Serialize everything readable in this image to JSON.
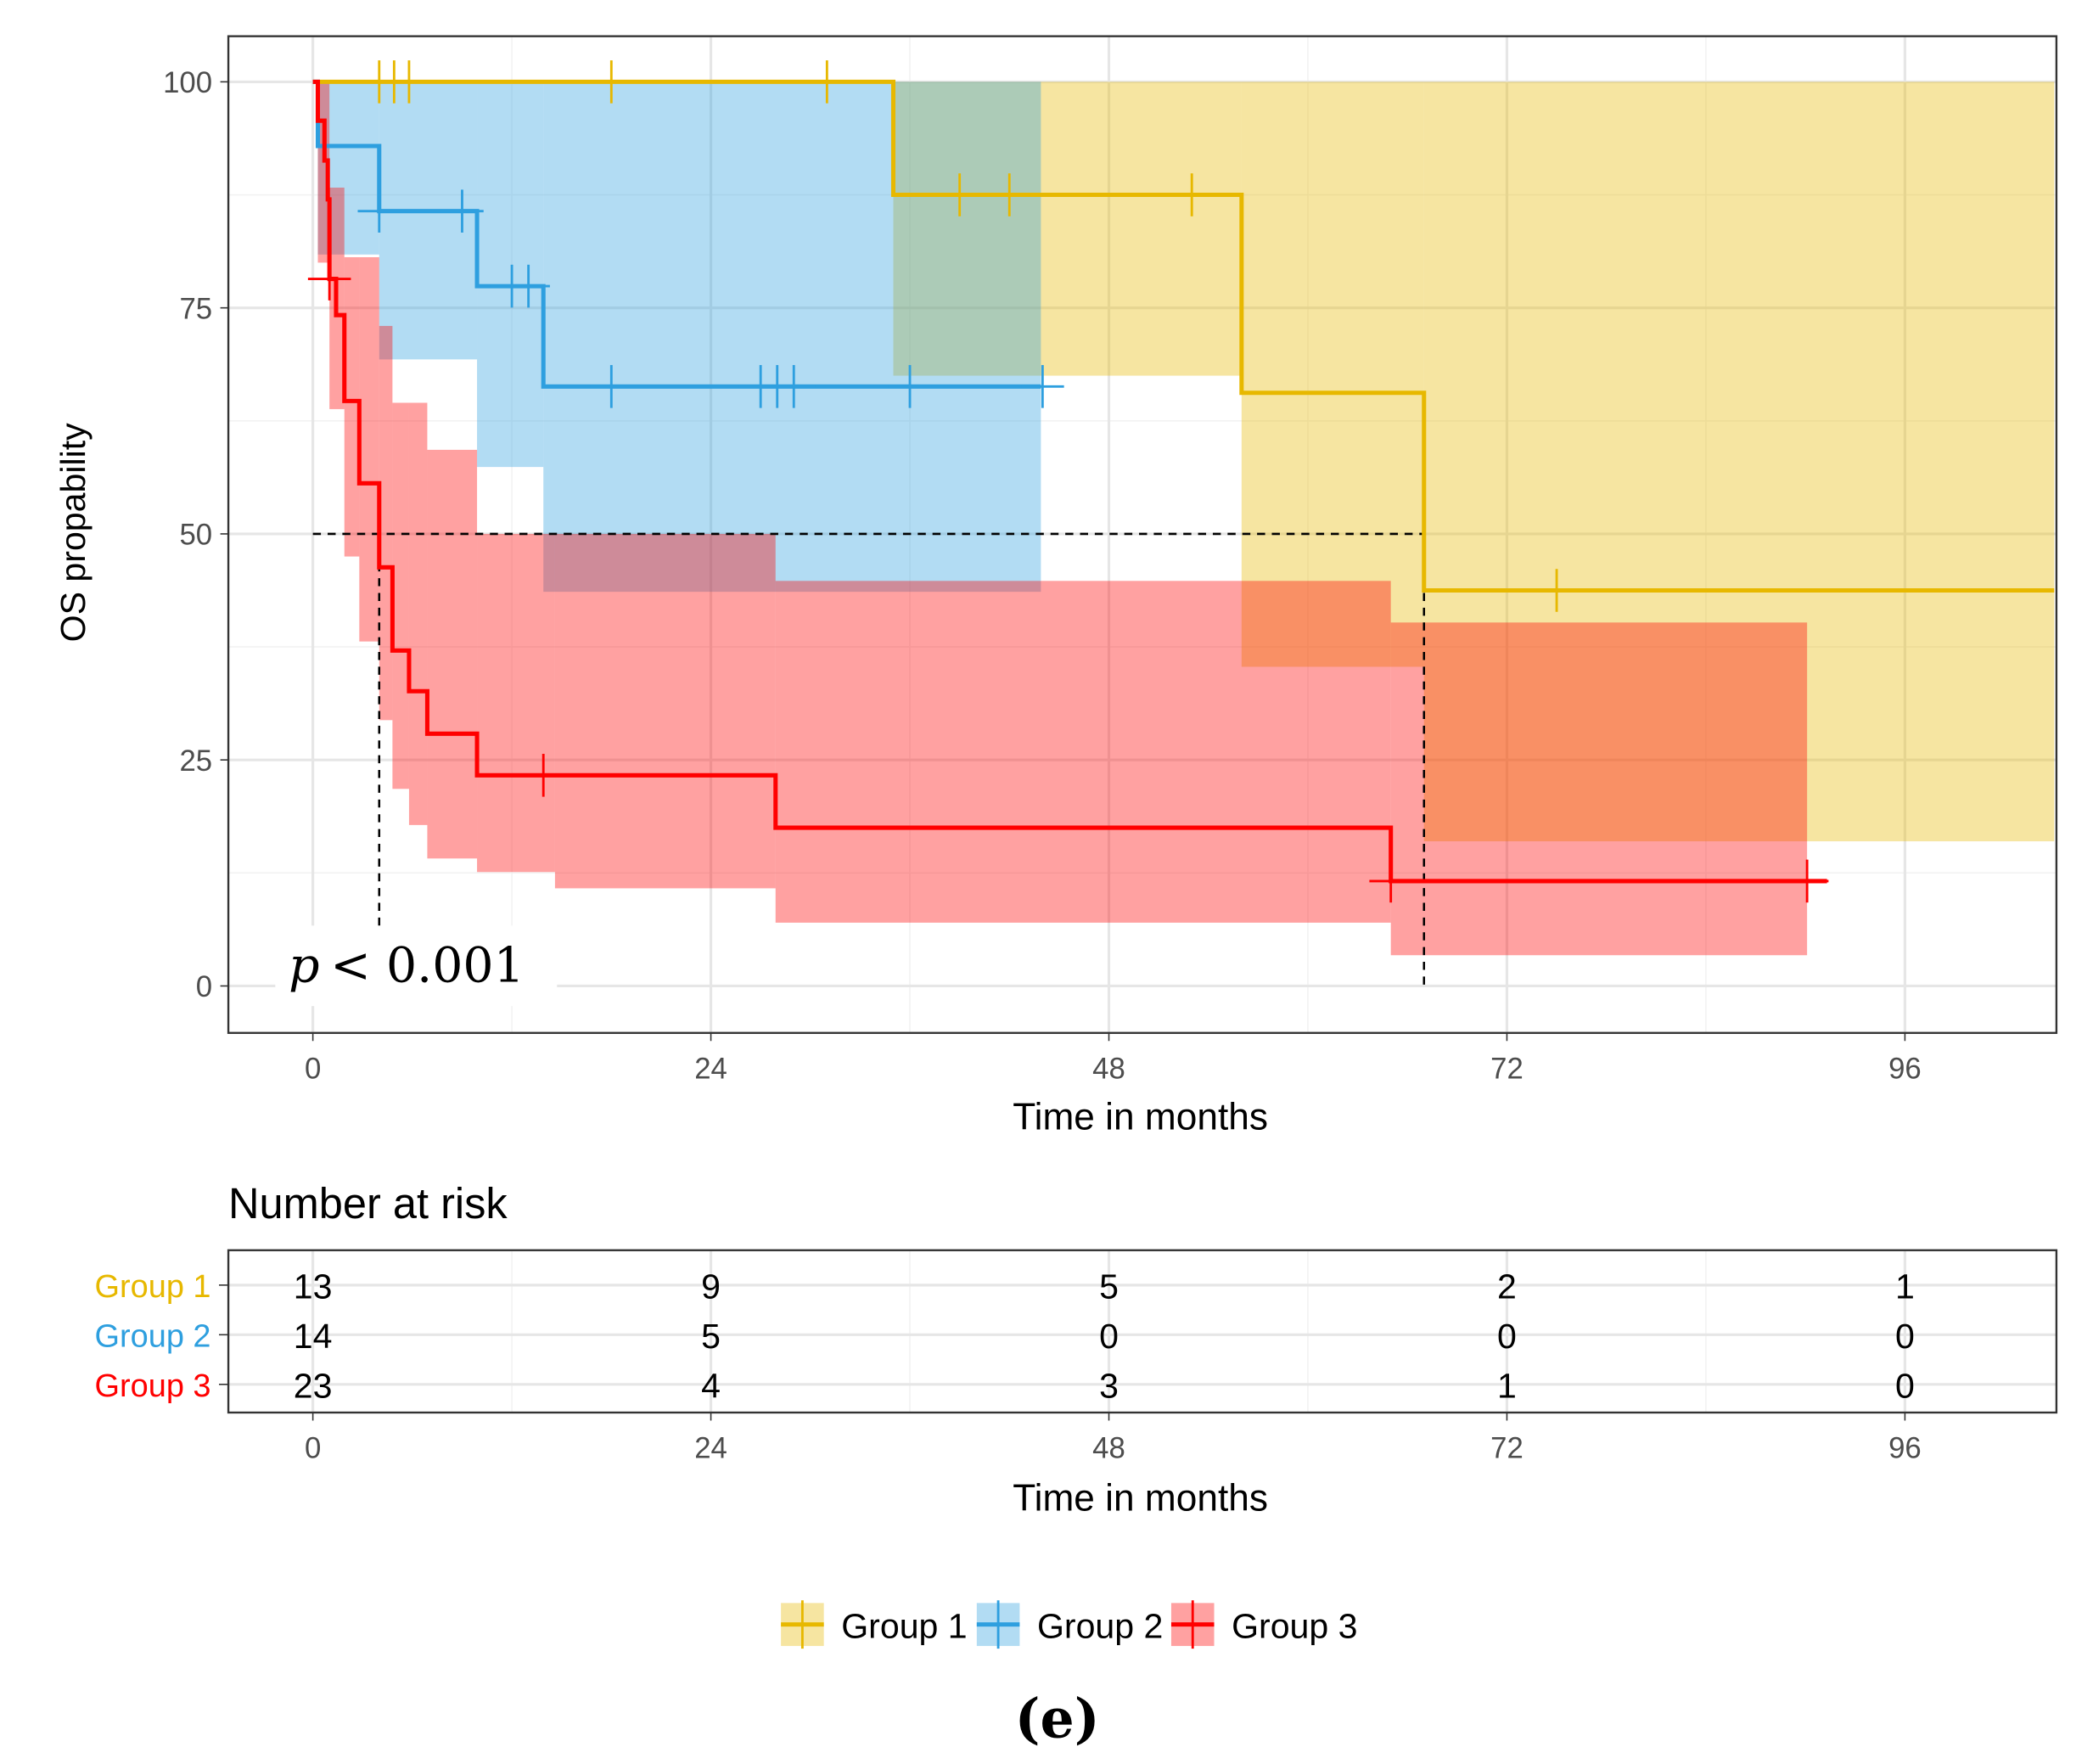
{
  "chart_data": {
    "type": "line",
    "subtype": "kaplan-meier",
    "title": "",
    "xlabel": "Time in months",
    "ylabel": "OS propability",
    "xlim": [
      -5,
      105
    ],
    "ylim": [
      -5,
      105
    ],
    "x_ticks": [
      0,
      24,
      48,
      72,
      96
    ],
    "y_ticks": [
      0,
      25,
      50,
      75,
      100
    ],
    "grid": true,
    "annotation": {
      "p_symbol": "p",
      "p_text": "< 0.001"
    },
    "median_line": {
      "y": 50,
      "x_values": [
        4.0,
        67.0
      ]
    },
    "series": [
      {
        "name": "Group 1",
        "color": "#E7B800",
        "steps": [
          [
            0,
            100
          ],
          [
            35,
            87.5
          ],
          [
            56,
            65.6
          ],
          [
            67,
            43.75
          ]
        ],
        "end": 105,
        "censor": [
          [
            4,
            100
          ],
          [
            4.9,
            100
          ],
          [
            5.8,
            100
          ],
          [
            18,
            100
          ],
          [
            31,
            100
          ],
          [
            39,
            87.5
          ],
          [
            42,
            87.5
          ],
          [
            53,
            87.5
          ],
          [
            75,
            43.75
          ]
        ],
        "ci": [
          [
            35,
            56,
            67.5,
            100
          ],
          [
            56,
            67,
            35.3,
            100
          ],
          [
            67,
            105,
            16,
            100
          ]
        ]
      },
      {
        "name": "Group 2",
        "color": "#2E9FDF",
        "steps": [
          [
            0,
            100
          ],
          [
            0.3,
            92.9
          ],
          [
            4,
            85.7
          ],
          [
            9.9,
            77.4
          ],
          [
            13.9,
            66.3
          ]
        ],
        "end": 43.9,
        "censor": [
          [
            4,
            85.7
          ],
          [
            9,
            85.7
          ],
          [
            12,
            77.4
          ],
          [
            13,
            77.4
          ],
          [
            18,
            66.3
          ],
          [
            27,
            66.3
          ],
          [
            28,
            66.3
          ],
          [
            29,
            66.3
          ],
          [
            36,
            66.3
          ],
          [
            44,
            66.3
          ]
        ],
        "ci": [
          [
            0.3,
            4,
            80.9,
            100
          ],
          [
            4,
            9.9,
            69.3,
            100
          ],
          [
            9.9,
            13.9,
            57.4,
            100
          ],
          [
            13.9,
            43.9,
            43.6,
            100
          ]
        ]
      },
      {
        "name": "Group 3",
        "color": "#FF0000",
        "steps": [
          [
            0,
            100
          ],
          [
            0.3,
            95.7
          ],
          [
            0.7,
            91.3
          ],
          [
            0.9,
            87
          ],
          [
            1.0,
            78.2
          ],
          [
            1.4,
            74.2
          ],
          [
            1.9,
            64.7
          ],
          [
            2.8,
            55.6
          ],
          [
            4.0,
            46.3
          ],
          [
            4.8,
            37.1
          ],
          [
            5.8,
            32.6
          ],
          [
            6.9,
            27.9
          ],
          [
            9.9,
            23.3
          ],
          [
            27.9,
            17.5
          ],
          [
            65,
            11.6
          ]
        ],
        "end": 91.3,
        "censor": [
          [
            1.0,
            78.2
          ],
          [
            13.9,
            23.3
          ],
          [
            65,
            11.6
          ],
          [
            90.1,
            11.6
          ]
        ],
        "ci": [
          [
            0.3,
            1.0,
            80,
            100
          ],
          [
            1.0,
            1.9,
            63.8,
            88.3
          ],
          [
            1.9,
            2.8,
            47.5,
            80.6
          ],
          [
            2.8,
            4.0,
            38.1,
            80.6
          ],
          [
            4.0,
            4.8,
            29.4,
            73
          ],
          [
            4.8,
            5.8,
            21.8,
            64.5
          ],
          [
            5.8,
            6.9,
            17.8,
            64.5
          ],
          [
            6.9,
            9.9,
            14.1,
            59.3
          ],
          [
            9.9,
            14.6,
            12.6,
            50
          ],
          [
            14.6,
            27.9,
            10.8,
            50
          ],
          [
            27.9,
            65,
            7,
            44.8
          ],
          [
            65,
            90.1,
            3.4,
            40.2
          ]
        ]
      }
    ],
    "risk_table": {
      "title": "Number at risk",
      "xlabel": "Time in months",
      "times": [
        0,
        24,
        48,
        72,
        96
      ],
      "rows": [
        {
          "group": "Group 1",
          "values": [
            "13",
            "9",
            "5",
            "2",
            "1"
          ]
        },
        {
          "group": "Group 2",
          "values": [
            "14",
            "5",
            "0",
            "0",
            "0"
          ]
        },
        {
          "group": "Group 3",
          "values": [
            "23",
            "4",
            "3",
            "1",
            "0"
          ]
        }
      ]
    },
    "legend": {
      "position": "bottom",
      "entries": [
        "Group 1",
        "Group 2",
        "Group 3"
      ]
    }
  },
  "figure_label": "(e)"
}
